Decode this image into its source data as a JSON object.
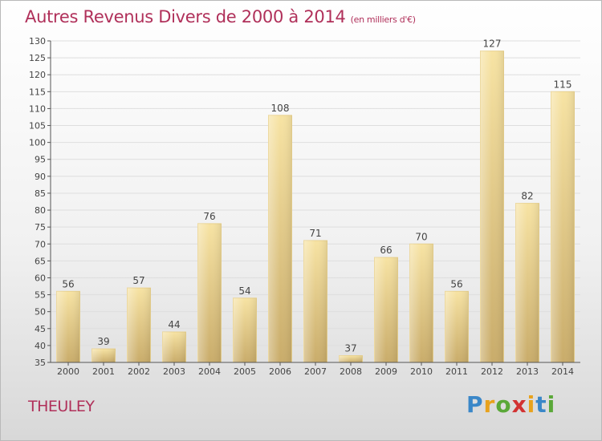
{
  "header": {
    "title": "Autres Revenus Divers de 2000 à 2014",
    "unit": "(en milliers d'€)"
  },
  "footer": {
    "commune": "THEULEY",
    "logo_text": "Proxiti"
  },
  "colors": {
    "title": "#b0305a",
    "bar_light": "#f7e3a3",
    "bar_dark": "#c9ac6a",
    "grid": "#dedede"
  },
  "chart_data": {
    "type": "bar",
    "title": "Autres Revenus Divers de 2000 à 2014",
    "subtitle": "(en milliers d'€)",
    "categories": [
      "2000",
      "2001",
      "2002",
      "2003",
      "2004",
      "2005",
      "2006",
      "2007",
      "2008",
      "2009",
      "2010",
      "2011",
      "2012",
      "2013",
      "2014"
    ],
    "values": [
      56,
      39,
      57,
      44,
      76,
      54,
      108,
      71,
      37,
      66,
      70,
      56,
      127,
      82,
      115
    ],
    "ylim": [
      35,
      130
    ],
    "ytick_step": 5,
    "grid": true,
    "data_labels": true,
    "xlabel": "",
    "ylabel": ""
  }
}
